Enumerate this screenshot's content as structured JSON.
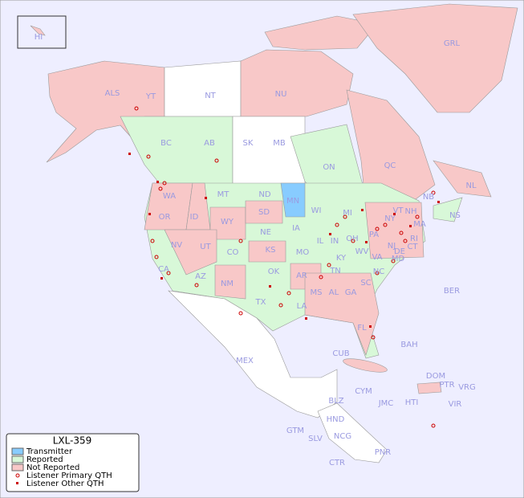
{
  "title": "LXL-359",
  "legend": [
    "Transmitter",
    "Reported",
    "Not Reported",
    "Listener Primary QTH",
    "Listener Other QTH"
  ],
  "regions": [
    "HI",
    "ALS",
    "YT",
    "NT",
    "NU",
    "GRL",
    "BC",
    "AB",
    "SK",
    "MB",
    "ON",
    "QC",
    "NL",
    "NS",
    "WA",
    "MT",
    "ND",
    "MN",
    "WI",
    "MI",
    "ID",
    "SD",
    "OR",
    "WY",
    "NE",
    "IA",
    "IL",
    "IN",
    "OH",
    "PA",
    "NY",
    "VT",
    "NH",
    "NB",
    "MA",
    "RI",
    "CT",
    "NJ",
    "DE",
    "MD",
    "NV",
    "UT",
    "CO",
    "KS",
    "MO",
    "KY",
    "WV",
    "VA",
    "CA",
    "AZ",
    "NM",
    "OK",
    "AR",
    "TN",
    "NC",
    "SC",
    "MS",
    "AL",
    "GA",
    "TX",
    "LA",
    "FL",
    "MEX",
    "CUB",
    "BAH",
    "BER",
    "DOM",
    "PTR",
    "VRG",
    "CYM",
    "JMC",
    "HTI",
    "VIR",
    "BLZ",
    "HND",
    "GTM",
    "SLV",
    "NCG",
    "CTR",
    "PNR"
  ]
}
